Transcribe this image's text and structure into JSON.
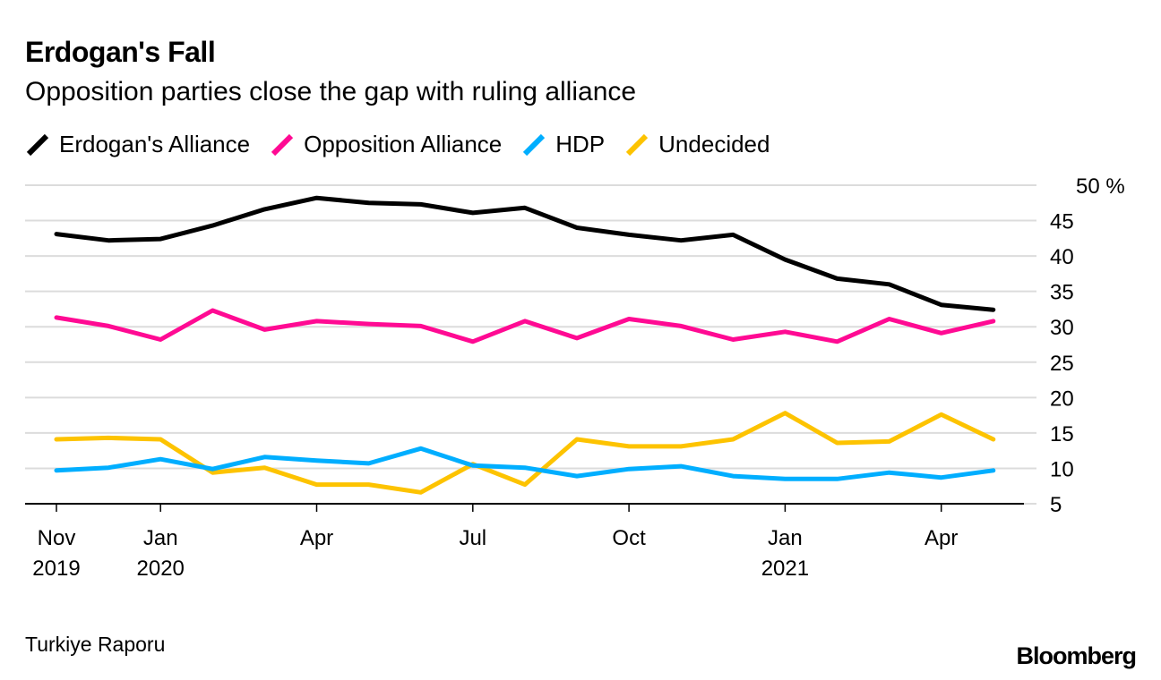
{
  "header": {
    "title": "Erdogan's Fall",
    "subtitle": "Opposition parties close the gap with ruling alliance"
  },
  "footer": {
    "source": "Turkiye Raporu",
    "brand": "Bloomberg"
  },
  "chart_data": {
    "type": "line",
    "title": "Erdogan's Fall",
    "subtitle": "Opposition parties close the gap with ruling alliance",
    "xlabel": "",
    "ylabel": "%",
    "ylim": [
      5,
      50
    ],
    "yticks": [
      5,
      10,
      15,
      20,
      25,
      30,
      35,
      40,
      45,
      50
    ],
    "ytick_labels": [
      "5",
      "10",
      "15",
      "20",
      "25",
      "30",
      "35",
      "40",
      "45",
      "50 %"
    ],
    "grid": true,
    "legend_position": "top-left",
    "x": [
      "2019-11",
      "2019-12",
      "2020-01",
      "2020-02",
      "2020-03",
      "2020-04",
      "2020-05",
      "2020-06",
      "2020-07",
      "2020-08",
      "2020-09",
      "2020-10",
      "2020-11",
      "2020-12",
      "2021-01",
      "2021-02",
      "2021-03",
      "2021-04",
      "2021-05"
    ],
    "xticks": [
      {
        "index": 0,
        "line1": "Nov",
        "line2": "2019"
      },
      {
        "index": 2,
        "line1": "Jan",
        "line2": "2020"
      },
      {
        "index": 5,
        "line1": "Apr",
        "line2": ""
      },
      {
        "index": 8,
        "line1": "Jul",
        "line2": ""
      },
      {
        "index": 11,
        "line1": "Oct",
        "line2": ""
      },
      {
        "index": 14,
        "line1": "Jan",
        "line2": "2021"
      },
      {
        "index": 17,
        "line1": "Apr",
        "line2": ""
      }
    ],
    "series": [
      {
        "name": "Erdogan's Alliance",
        "color": "#000000",
        "values": [
          43.1,
          42.2,
          42.4,
          44.3,
          46.6,
          48.2,
          47.5,
          47.3,
          46.1,
          46.8,
          44.0,
          43.0,
          42.2,
          43.0,
          39.5,
          36.8,
          36.0,
          33.1,
          32.4
        ]
      },
      {
        "name": "Opposition Alliance",
        "color": "#ff0a93",
        "values": [
          31.3,
          30.1,
          28.2,
          32.3,
          29.6,
          30.8,
          30.4,
          30.1,
          27.9,
          30.8,
          28.4,
          31.1,
          30.1,
          28.2,
          29.3,
          27.9,
          31.1,
          29.1,
          30.8
        ]
      },
      {
        "name": "HDP",
        "color": "#00aeff",
        "values": [
          9.7,
          10.1,
          11.3,
          9.9,
          11.6,
          11.1,
          10.7,
          12.8,
          10.4,
          10.1,
          8.9,
          9.9,
          10.3,
          8.9,
          8.5,
          8.5,
          9.4,
          8.7,
          9.7
        ]
      },
      {
        "name": "Undecided",
        "color": "#fdc300",
        "values": [
          14.1,
          14.3,
          14.1,
          9.4,
          10.1,
          7.7,
          7.7,
          6.6,
          10.6,
          7.7,
          14.1,
          13.1,
          13.1,
          14.1,
          17.8,
          13.6,
          13.8,
          17.6,
          14.1
        ]
      }
    ]
  }
}
